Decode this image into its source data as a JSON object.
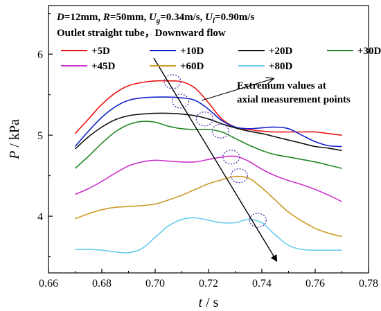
{
  "chart_data": {
    "type": "line",
    "title": "",
    "xlabel": "t / s",
    "ylabel": "P / kPa",
    "xlim": [
      0.66,
      0.78
    ],
    "ylim": [
      3.3,
      6.6
    ],
    "xticks": [
      0.66,
      0.68,
      0.7,
      0.72,
      0.74,
      0.76,
      0.78
    ],
    "xtick_labels": [
      "0.66",
      "0.68",
      "0.70",
      "0.72",
      "0.74",
      "0.76",
      "0.78"
    ],
    "yticks": [
      4,
      5,
      6
    ],
    "ytick_labels": [
      "4",
      "5",
      "6"
    ],
    "grid": false,
    "legend_placement": "top",
    "info_line": "D=12mm, R=50mm, Ug=0.34m/s, Ul=0.90m/s",
    "condition_line": "Outlet straight tube，Downward flow",
    "annotation": [
      "Extremum values at",
      "axial measurement points"
    ],
    "extremum_points": [
      {
        "t": 0.7065,
        "p": 5.66
      },
      {
        "t": 0.7095,
        "p": 5.42
      },
      {
        "t": 0.7185,
        "p": 5.2
      },
      {
        "t": 0.7245,
        "p": 5.05
      },
      {
        "t": 0.7285,
        "p": 4.73
      },
      {
        "t": 0.7315,
        "p": 4.5
      },
      {
        "t": 0.7385,
        "p": 3.95
      }
    ],
    "series": [
      {
        "name": "+5D",
        "color": "#ee1111",
        "x": [
          0.67,
          0.675,
          0.68,
          0.685,
          0.69,
          0.695,
          0.7,
          0.705,
          0.71,
          0.715,
          0.72,
          0.725,
          0.73,
          0.735,
          0.74,
          0.745,
          0.75,
          0.755,
          0.76,
          0.765,
          0.77
        ],
        "y": [
          5.02,
          5.2,
          5.38,
          5.52,
          5.61,
          5.65,
          5.67,
          5.67,
          5.66,
          5.58,
          5.4,
          5.2,
          5.1,
          5.07,
          5.05,
          5.04,
          5.04,
          5.04,
          5.04,
          5.02,
          5.0
        ]
      },
      {
        "name": "+10D",
        "color": "#1122cc",
        "x": [
          0.67,
          0.675,
          0.68,
          0.685,
          0.69,
          0.695,
          0.7,
          0.705,
          0.71,
          0.715,
          0.72,
          0.725,
          0.73,
          0.735,
          0.74,
          0.745,
          0.75,
          0.755,
          0.76,
          0.765,
          0.77
        ],
        "y": [
          4.86,
          5.05,
          5.22,
          5.35,
          5.43,
          5.46,
          5.47,
          5.47,
          5.46,
          5.43,
          5.32,
          5.18,
          5.1,
          5.08,
          5.09,
          5.1,
          5.08,
          5.0,
          4.92,
          4.87,
          4.86
        ]
      },
      {
        "name": "+20D",
        "color": "#111111",
        "x": [
          0.67,
          0.675,
          0.68,
          0.685,
          0.69,
          0.695,
          0.7,
          0.705,
          0.71,
          0.715,
          0.72,
          0.725,
          0.73,
          0.735,
          0.74,
          0.745,
          0.75,
          0.755,
          0.76,
          0.765,
          0.77
        ],
        "y": [
          4.83,
          4.98,
          5.1,
          5.19,
          5.24,
          5.26,
          5.27,
          5.27,
          5.26,
          5.24,
          5.2,
          5.14,
          5.09,
          5.05,
          5.02,
          4.98,
          4.94,
          4.9,
          4.86,
          4.84,
          4.81
        ]
      },
      {
        "name": "+30D",
        "color": "#228822",
        "x": [
          0.67,
          0.675,
          0.68,
          0.685,
          0.69,
          0.695,
          0.7,
          0.705,
          0.71,
          0.715,
          0.72,
          0.725,
          0.73,
          0.735,
          0.74,
          0.745,
          0.75,
          0.755,
          0.76,
          0.765,
          0.77
        ],
        "y": [
          4.59,
          4.74,
          4.9,
          5.04,
          5.13,
          5.17,
          5.16,
          5.11,
          5.08,
          5.07,
          5.07,
          5.04,
          4.96,
          4.88,
          4.81,
          4.76,
          4.73,
          4.7,
          4.67,
          4.63,
          4.59
        ]
      },
      {
        "name": "+45D",
        "color": "#cc33cc",
        "x": [
          0.67,
          0.675,
          0.68,
          0.685,
          0.69,
          0.695,
          0.7,
          0.705,
          0.71,
          0.715,
          0.72,
          0.725,
          0.73,
          0.735,
          0.74,
          0.745,
          0.75,
          0.755,
          0.76,
          0.765,
          0.77
        ],
        "y": [
          4.27,
          4.34,
          4.43,
          4.53,
          4.62,
          4.67,
          4.69,
          4.68,
          4.67,
          4.67,
          4.7,
          4.73,
          4.74,
          4.68,
          4.58,
          4.5,
          4.44,
          4.39,
          4.33,
          4.26,
          4.18
        ]
      },
      {
        "name": "+60D",
        "color": "#cc9922",
        "x": [
          0.67,
          0.675,
          0.68,
          0.685,
          0.69,
          0.695,
          0.7,
          0.705,
          0.71,
          0.715,
          0.72,
          0.725,
          0.73,
          0.735,
          0.74,
          0.745,
          0.75,
          0.755,
          0.76,
          0.765,
          0.77
        ],
        "y": [
          3.97,
          4.03,
          4.08,
          4.11,
          4.12,
          4.13,
          4.15,
          4.2,
          4.26,
          4.33,
          4.4,
          4.45,
          4.49,
          4.47,
          4.35,
          4.2,
          4.05,
          3.94,
          3.85,
          3.79,
          3.75
        ]
      },
      {
        "name": "+80D",
        "color": "#66ccee",
        "x": [
          0.67,
          0.675,
          0.68,
          0.685,
          0.69,
          0.695,
          0.7,
          0.705,
          0.71,
          0.715,
          0.72,
          0.725,
          0.73,
          0.735,
          0.74,
          0.745,
          0.75,
          0.755,
          0.76,
          0.765,
          0.77
        ],
        "y": [
          3.59,
          3.59,
          3.58,
          3.56,
          3.55,
          3.6,
          3.74,
          3.88,
          3.96,
          3.98,
          3.95,
          3.92,
          3.92,
          3.96,
          3.92,
          3.77,
          3.64,
          3.59,
          3.58,
          3.58,
          3.58
        ]
      }
    ]
  }
}
